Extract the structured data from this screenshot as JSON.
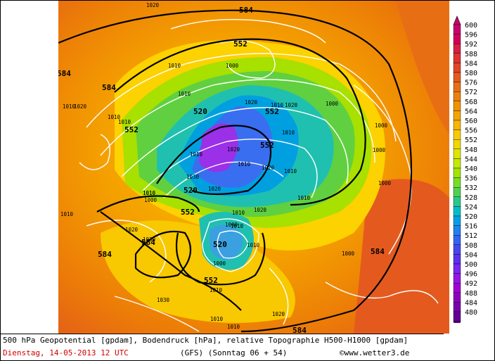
{
  "map": {
    "contour_labels_geopotential": [
      {
        "text": "584"
      },
      {
        "text": "584"
      },
      {
        "text": "584"
      },
      {
        "text": "584"
      },
      {
        "text": "584"
      },
      {
        "text": "584"
      },
      {
        "text": "584"
      },
      {
        "text": "552"
      },
      {
        "text": "552"
      },
      {
        "text": "552"
      },
      {
        "text": "552"
      },
      {
        "text": "552"
      },
      {
        "text": "552"
      },
      {
        "text": "520"
      },
      {
        "text": "520"
      },
      {
        "text": "520"
      }
    ],
    "pressure_labels": [
      "1020",
      "1010",
      "1000",
      "1010",
      "1020",
      "1010",
      "1020",
      "1020",
      "1010",
      "1000",
      "1010",
      "1010",
      "1000",
      "1010",
      "1000",
      "1010",
      "1020",
      "1010",
      "1020",
      "1030",
      "1010",
      "1020",
      "1010",
      "1010",
      "1000",
      "1010",
      "1010",
      "1020",
      "1010",
      "1000",
      "1010",
      "1030",
      "1010",
      "1000",
      "1030",
      "1010",
      "1010",
      "1010",
      "1020",
      "1000",
      "1020",
      "1000"
    ]
  },
  "legend": {
    "labels": [
      "600",
      "596",
      "592",
      "588",
      "584",
      "580",
      "576",
      "572",
      "568",
      "564",
      "560",
      "556",
      "552",
      "548",
      "544",
      "540",
      "536",
      "532",
      "528",
      "524",
      "520",
      "516",
      "512",
      "508",
      "504",
      "500",
      "496",
      "492",
      "488",
      "484",
      "480"
    ],
    "colors": [
      "#c8006e",
      "#d0005a",
      "#d81e46",
      "#dc3232",
      "#e04628",
      "#e45a1e",
      "#e86e14",
      "#ec800a",
      "#f09200",
      "#f4a400",
      "#f8b600",
      "#fcc800",
      "#f0d800",
      "#dce600",
      "#c3ea00",
      "#a0e600",
      "#78dc28",
      "#50d250",
      "#28c88c",
      "#00bec8",
      "#00a0e6",
      "#1e82f0",
      "#3264f0",
      "#4646f0",
      "#5a32f0",
      "#7828f0",
      "#9614e6",
      "#a000d2",
      "#8c00be",
      "#7800aa",
      "#640096"
    ]
  },
  "caption": {
    "line1": "500 hPa Geopotential [gpdam], Bodendruck [hPa], relative Topographie H500-H1000 [gpdam]",
    "date": "Dienstag, 14-05-2013  12 UTC",
    "model_run": "(GFS)  (Sonntag 06 + 54)",
    "credit": "©www.wetter3.de"
  },
  "colors": {
    "date_text": "#d00000"
  }
}
